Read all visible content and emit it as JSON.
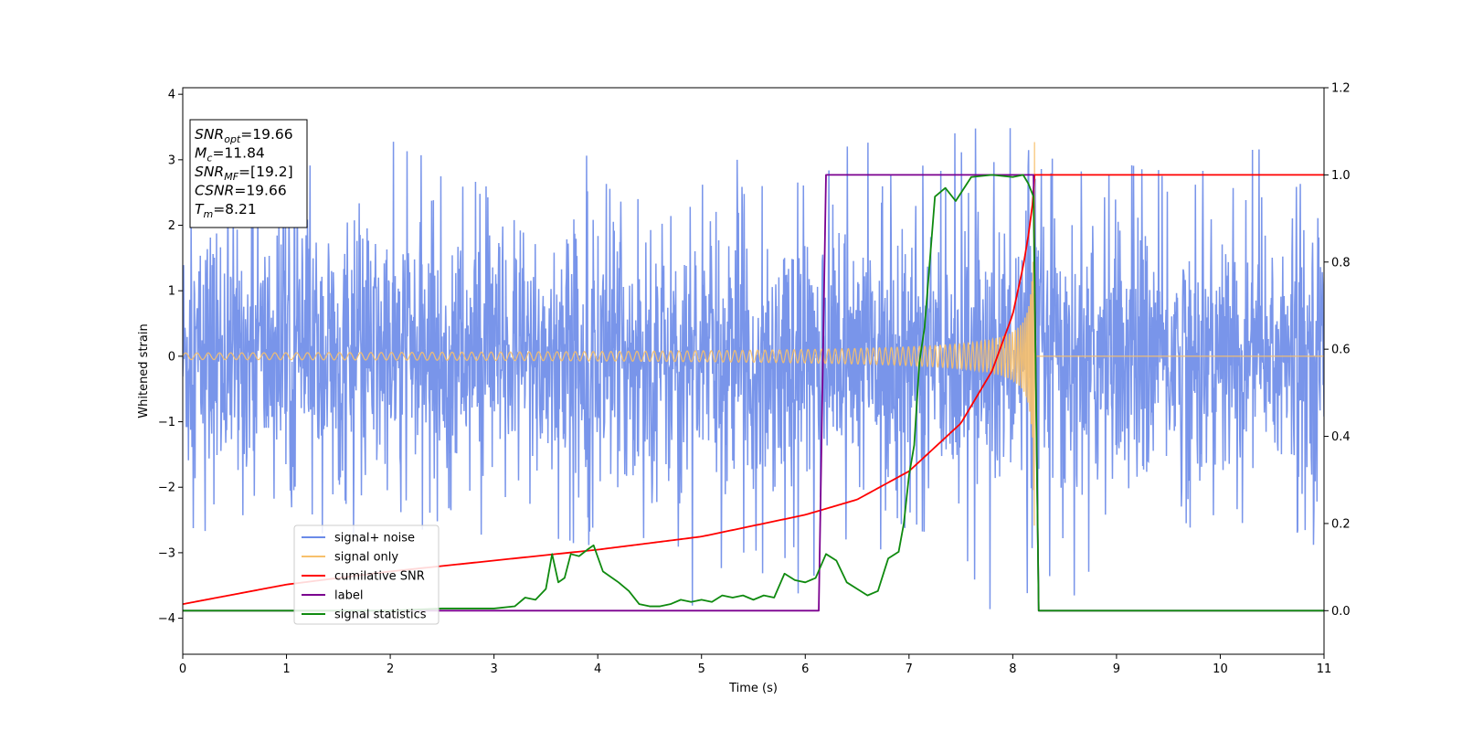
{
  "chart_data": {
    "type": "line",
    "title": "",
    "xlabel": "Time (s)",
    "ylabel": "Whitened strain",
    "ylabel_right": "",
    "xlim": [
      0,
      11
    ],
    "ylim_left": [
      -4.55,
      4.1
    ],
    "ylim_right": [
      -0.1,
      1.2
    ],
    "x_ticks": [
      0,
      1,
      2,
      3,
      4,
      5,
      6,
      7,
      8,
      9,
      10,
      11
    ],
    "y_ticks_left": [
      -4,
      -3,
      -2,
      -1,
      0,
      1,
      2,
      3,
      4
    ],
    "y_ticks_right": [
      0.0,
      0.2,
      0.4,
      0.6,
      0.8,
      1.0,
      1.2
    ],
    "grid": false,
    "legend_position": "lower-left",
    "annotation_lines": [
      {
        "name": "SNR",
        "sub": "opt",
        "value": "=19.66"
      },
      {
        "name": "M",
        "sub": "c",
        "value": "=11.84"
      },
      {
        "name": "SNR",
        "sub": "MF",
        "value": "=[19.2]"
      },
      {
        "name": "CSNR",
        "sub": "",
        "value": "=19.66"
      },
      {
        "name": "T",
        "sub": "m",
        "value": "=8.21"
      }
    ],
    "series": [
      {
        "name": "signal+ noise",
        "axis": "left",
        "color": "#6a8ae8",
        "description_values": {
          "mean": 0.0,
          "approx_std": 1.0,
          "max": 3.72,
          "min": -4.15
        },
        "envelope": {
          "x": [
            0,
            1,
            2,
            3,
            4,
            5,
            6,
            7,
            8,
            8.21,
            9,
            10,
            11
          ],
          "upper": [
            2.6,
            2.9,
            3.3,
            2.9,
            3.1,
            2.9,
            3.2,
            3.3,
            3.6,
            3.5,
            2.9,
            3.5,
            2.7
          ],
          "lower": [
            -3.3,
            -2.6,
            -2.9,
            -2.7,
            -2.9,
            -3.9,
            -3.6,
            -3.4,
            -4.15,
            -3.6,
            -3.8,
            -2.7,
            -2.9
          ]
        }
      },
      {
        "name": "signal only",
        "axis": "left",
        "color": "#f7c06c",
        "chirp": {
          "t_merge": 8.21,
          "amplitude_at_start": 0.05,
          "amplitude_near_merge": 3.5,
          "freq_start_hz": 20
        }
      },
      {
        "name": "cumilative SNR",
        "axis": "right",
        "color": "#ff0000",
        "x": [
          0,
          1,
          2,
          3,
          4,
          5,
          6,
          6.5,
          7,
          7.5,
          7.8,
          8.0,
          8.1,
          8.15,
          8.2,
          8.21,
          11
        ],
        "y": [
          0.015,
          0.06,
          0.09,
          0.115,
          0.14,
          0.17,
          0.22,
          0.255,
          0.32,
          0.43,
          0.55,
          0.68,
          0.79,
          0.86,
          0.95,
          1.0,
          1.0
        ]
      },
      {
        "name": "label",
        "axis": "right",
        "color": "#7b008f",
        "x": [
          0,
          6.13,
          6.2,
          8.2,
          8.25,
          11
        ],
        "y": [
          0,
          0,
          1,
          1,
          0,
          0
        ]
      },
      {
        "name": "signal statistics",
        "axis": "right",
        "color": "#0f8a0f",
        "x": [
          0,
          1,
          2,
          2.5,
          3,
          3.2,
          3.3,
          3.4,
          3.5,
          3.56,
          3.62,
          3.68,
          3.74,
          3.82,
          3.9,
          3.96,
          4.05,
          4.2,
          4.3,
          4.4,
          4.5,
          4.6,
          4.7,
          4.8,
          4.9,
          5.0,
          5.1,
          5.2,
          5.3,
          5.4,
          5.5,
          5.6,
          5.7,
          5.8,
          5.9,
          6.0,
          6.1,
          6.2,
          6.3,
          6.4,
          6.5,
          6.6,
          6.7,
          6.8,
          6.9,
          6.95,
          7.0,
          7.05,
          7.1,
          7.15,
          7.25,
          7.35,
          7.45,
          7.6,
          7.8,
          8.0,
          8.1,
          8.15,
          8.2,
          8.25,
          8.3,
          11
        ],
        "y": [
          0.0,
          0.0,
          0.0,
          0.005,
          0.005,
          0.01,
          0.03,
          0.025,
          0.05,
          0.13,
          0.065,
          0.075,
          0.13,
          0.125,
          0.14,
          0.15,
          0.09,
          0.065,
          0.045,
          0.015,
          0.01,
          0.01,
          0.015,
          0.025,
          0.02,
          0.025,
          0.02,
          0.035,
          0.03,
          0.035,
          0.025,
          0.035,
          0.03,
          0.085,
          0.07,
          0.065,
          0.075,
          0.13,
          0.115,
          0.065,
          0.05,
          0.035,
          0.045,
          0.12,
          0.135,
          0.2,
          0.31,
          0.38,
          0.57,
          0.65,
          0.95,
          0.97,
          0.94,
          0.995,
          1.0,
          0.995,
          1.0,
          0.98,
          0.95,
          0.0,
          0.0,
          0.0
        ]
      }
    ]
  }
}
